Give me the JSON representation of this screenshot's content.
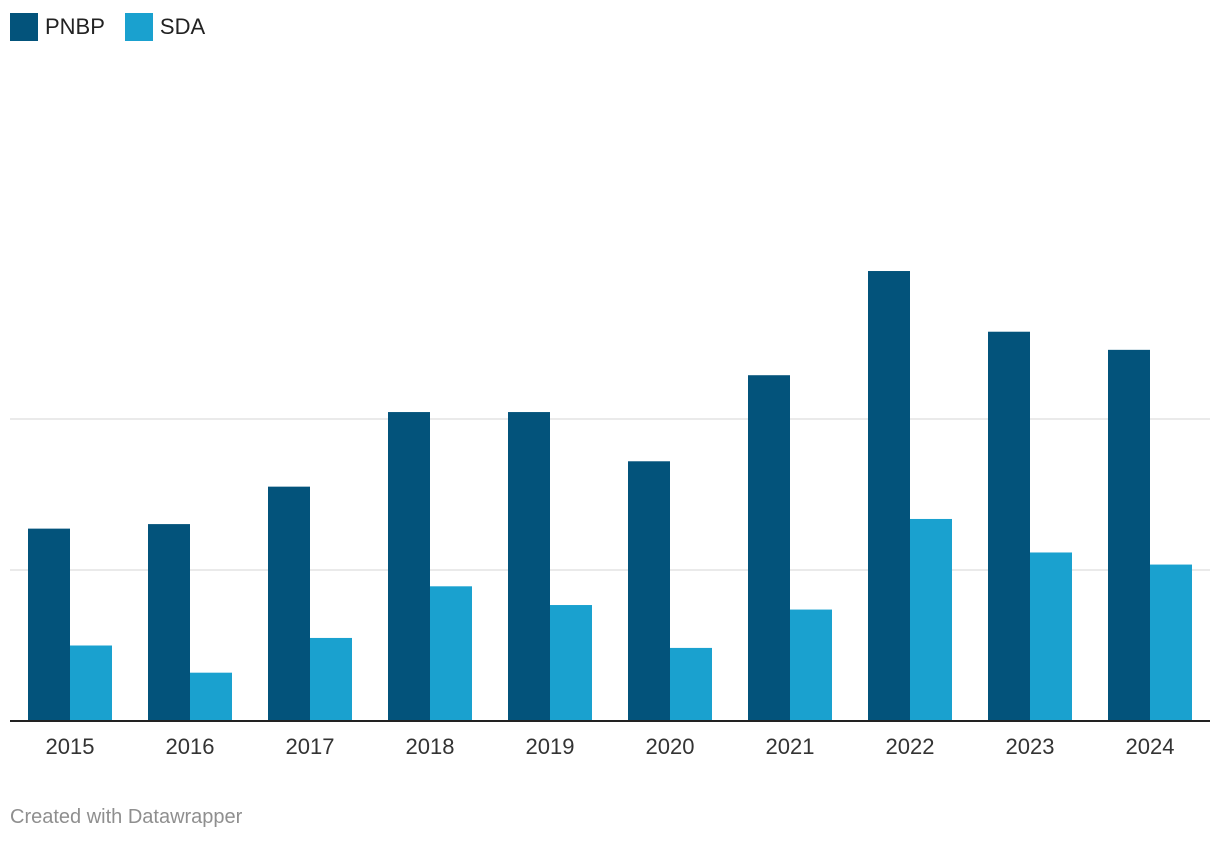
{
  "chart_data": {
    "type": "bar",
    "title": "",
    "xlabel": "",
    "ylabel": "",
    "categories": [
      "2015",
      "2016",
      "2017",
      "2018",
      "2019",
      "2020",
      "2021",
      "2022",
      "2023",
      "2024"
    ],
    "series": [
      {
        "name": "PNBP",
        "color": "#03537b",
        "values": [
          63.7,
          65.2,
          77.6,
          102.3,
          102.3,
          86.0,
          114.5,
          149.0,
          128.9,
          122.9
        ]
      },
      {
        "name": "SDA",
        "color": "#1aa1cf",
        "values": [
          25.0,
          16.0,
          27.5,
          44.6,
          38.4,
          24.2,
          36.9,
          66.9,
          55.8,
          51.8
        ]
      }
    ],
    "ylim": [
      0,
      200
    ],
    "gridlines": [
      0,
      50,
      100
    ],
    "grid": true,
    "legend": "top-left"
  },
  "footer": {
    "credit": "Created with Datawrapper"
  }
}
